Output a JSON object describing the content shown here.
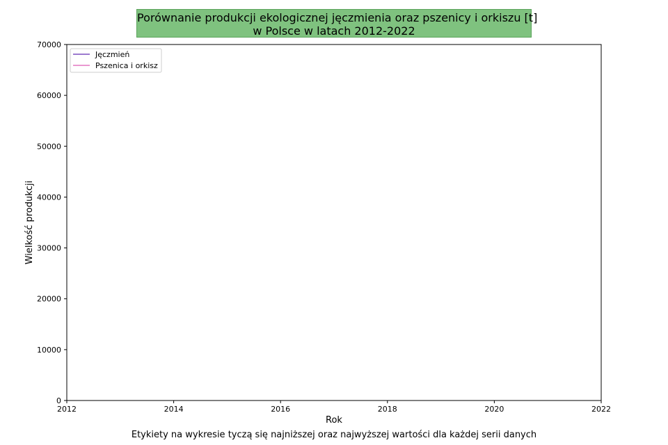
{
  "chart_data": {
    "type": "line",
    "title_lines": [
      "Porównanie produkcji ekologicznej jęczmienia oraz pszenicy i orkiszu [t]",
      "w Polsce w latach 2012-2022"
    ],
    "xlabel": "Rok",
    "ylabel": "Wielkość produkcji",
    "xlim": [
      2012,
      2022
    ],
    "ylim": [
      0,
      70000
    ],
    "x_ticks": [
      "2012",
      "2014",
      "2016",
      "2018",
      "2020",
      "2022"
    ],
    "y_ticks": [
      "0",
      "10000",
      "20000",
      "30000",
      "40000",
      "50000",
      "60000",
      "70000"
    ],
    "grid": false,
    "legend_position": "top-left",
    "series": [
      {
        "name": "Jęczmień",
        "color": "#7b4fbf",
        "x": [],
        "y": []
      },
      {
        "name": "Pszenica i orkisz",
        "color": "#e377c2",
        "x": [],
        "y": []
      }
    ],
    "caption": "Etykiety na wykresie tyczą się najniższej oraz najwyższej wartości dla każdej serii danych",
    "title_box_color": "#7fc27f"
  }
}
